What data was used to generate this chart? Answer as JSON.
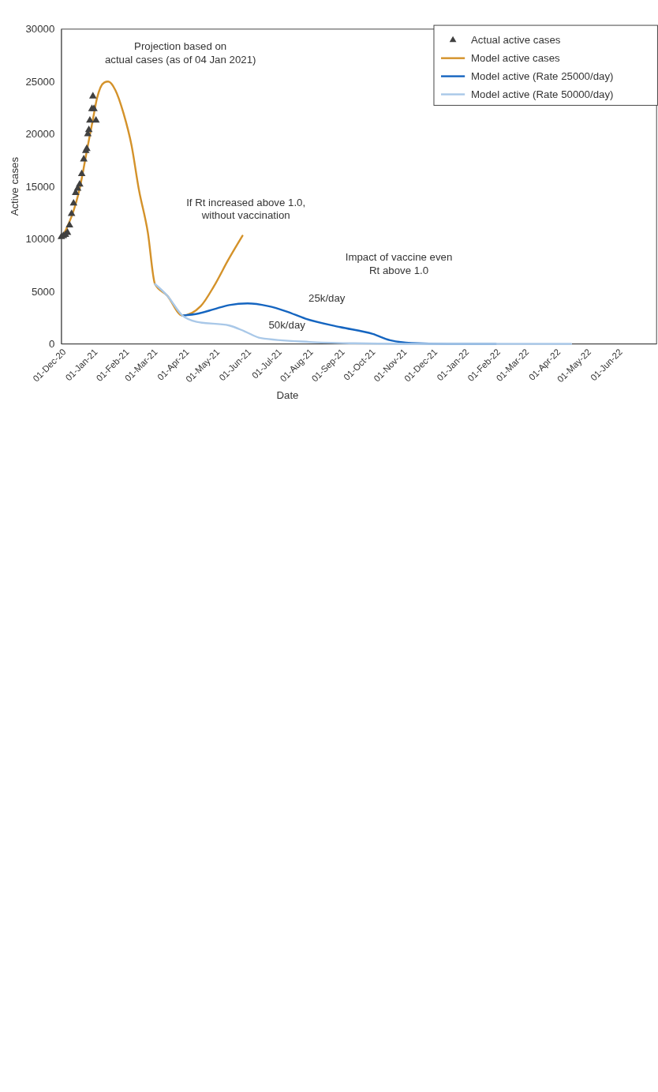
{
  "chart_data": {
    "type": "line",
    "xlabel": "Date",
    "ylabel": "Active cases",
    "legend": "top right",
    "xlim": [
      "2020-12-01",
      "2022-07-09"
    ],
    "xticks": [
      {
        "value": "2020-12-01",
        "label": "01-Dec-20"
      },
      {
        "value": "2021-01-01",
        "label": "01-Jan-21"
      },
      {
        "value": "2021-02-01",
        "label": "01-Feb-21"
      },
      {
        "value": "2021-03-01",
        "label": "01-Mar-21"
      },
      {
        "value": "2021-04-01",
        "label": "01-Apr-21"
      },
      {
        "value": "2021-05-01",
        "label": "01-May-21"
      },
      {
        "value": "2021-06-01",
        "label": "01-Jun-21"
      },
      {
        "value": "2021-07-01",
        "label": "01-Jul-21"
      },
      {
        "value": "2021-08-01",
        "label": "01-Aug-21"
      },
      {
        "value": "2021-09-01",
        "label": "01-Sep-21"
      },
      {
        "value": "2021-10-01",
        "label": "01-Oct-21"
      },
      {
        "value": "2021-11-01",
        "label": "01-Nov-21"
      },
      {
        "value": "2021-12-01",
        "label": "01-Dec-21"
      },
      {
        "value": "2022-01-01",
        "label": "01-Jan-22"
      },
      {
        "value": "2022-02-01",
        "label": "01-Feb-22"
      },
      {
        "value": "2022-03-01",
        "label": "01-Mar-22"
      },
      {
        "value": "2022-04-01",
        "label": "01-Apr-22"
      },
      {
        "value": "2022-05-01",
        "label": "01-May-22"
      },
      {
        "value": "2022-06-01",
        "label": "01-Jun-22"
      }
    ],
    "ylim": [
      0,
      30000
    ],
    "yticks": [
      0,
      5000,
      10000,
      15000,
      20000,
      25000,
      30000
    ],
    "series": [
      {
        "name": "Actual active cases",
        "type": "scatter",
        "marker": "triangle",
        "color": "#404040",
        "x": [
          "2020-12-01",
          "2020-12-03",
          "2020-12-05",
          "2020-12-07",
          "2020-12-09",
          "2020-12-11",
          "2020-12-13",
          "2020-12-15",
          "2020-12-17",
          "2020-12-19",
          "2020-12-21",
          "2020-12-23",
          "2020-12-25",
          "2020-12-26",
          "2020-12-27",
          "2020-12-28",
          "2020-12-29",
          "2020-12-31",
          "2021-01-01",
          "2021-01-02",
          "2021-01-04"
        ],
        "values": [
          10200,
          10300,
          10400,
          10600,
          11300,
          12400,
          13400,
          14400,
          14800,
          15200,
          16200,
          17600,
          18400,
          18600,
          20000,
          20400,
          21300,
          22400,
          23600,
          22400,
          21300
        ]
      },
      {
        "name": "Model active cases",
        "color": "#d4922a",
        "x": [
          "2020-12-02",
          "2020-12-13",
          "2020-12-19",
          "2020-12-23",
          "2020-12-27",
          "2021-01-01",
          "2021-01-05",
          "2021-01-12",
          "2021-01-16",
          "2021-01-23",
          "2021-01-31",
          "2021-02-08",
          "2021-02-15",
          "2021-02-24",
          "2021-03-03",
          "2021-03-15",
          "2021-03-30",
          "2021-04-17",
          "2021-04-30",
          "2021-05-14",
          "2021-05-28"
        ],
        "values": [
          10200,
          12700,
          14800,
          16800,
          18900,
          21400,
          23400,
          24900,
          25000,
          24200,
          22000,
          18900,
          14800,
          10600,
          5700,
          4600,
          2700,
          3600,
          5500,
          8000,
          10300
        ]
      },
      {
        "name": "Model active (Rate 25000/day)",
        "color": "#1565c0",
        "x": [
          "2021-03-30",
          "2021-04-15",
          "2021-04-30",
          "2021-05-15",
          "2021-06-02",
          "2021-06-22",
          "2021-07-10",
          "2021-07-29",
          "2021-09-01",
          "2021-10-03",
          "2021-10-20",
          "2021-11-10",
          "2021-12-15",
          "2022-02-01"
        ],
        "values": [
          2700,
          2900,
          3300,
          3700,
          3850,
          3600,
          3100,
          2400,
          1600,
          950,
          350,
          80,
          0,
          0
        ]
      },
      {
        "name": "Model active (Rate 50000/day)",
        "color": "#a9c8e8",
        "x": [
          "2021-03-03",
          "2021-03-15",
          "2021-03-30",
          "2021-04-13",
          "2021-05-15",
          "2021-05-30",
          "2021-06-15",
          "2021-08-02",
          "2021-09-15",
          "2021-11-01",
          "2022-04-16"
        ],
        "values": [
          5700,
          4600,
          2700,
          2100,
          1750,
          1200,
          550,
          180,
          50,
          0,
          0
        ]
      }
    ],
    "annotations": [
      "Projection based on\nactual cases (as of 04 Jan 2021)",
      "If Rt increased above 1.0,\nwithout vaccination",
      "Impact of vaccine even\nRt above 1.0",
      "25k/day",
      "50k/day"
    ]
  }
}
